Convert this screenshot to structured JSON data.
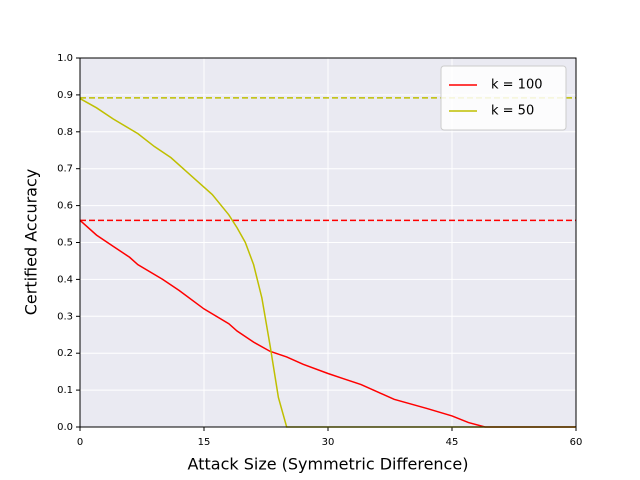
{
  "chart_data": {
    "type": "line",
    "xlabel": "Attack Size (Symmetric Difference)",
    "ylabel": "Certified Accuracy",
    "xlim": [
      0,
      60
    ],
    "xticks": [
      0,
      15,
      30,
      45,
      60
    ],
    "ylim": [
      0,
      1
    ],
    "yticks": [
      {
        "value": 0,
        "label": "0.0"
      },
      0.1,
      0.2,
      0.3,
      0.4,
      0.5,
      0.6,
      0.7,
      0.8,
      0.9,
      {
        "value": 1,
        "label": "1.0"
      }
    ],
    "grid": true,
    "legend": "upper right",
    "series": [
      {
        "name": "k = 100",
        "color": "#ff0000",
        "x": [
          0,
          2,
          4,
          6,
          7,
          10,
          12,
          15,
          18,
          19,
          21,
          23,
          25,
          27,
          30,
          32,
          34,
          36,
          38,
          42,
          45,
          47,
          49,
          60
        ],
        "values": [
          0.56,
          0.52,
          0.49,
          0.46,
          0.44,
          0.4,
          0.37,
          0.32,
          0.28,
          0.26,
          0.23,
          0.205,
          0.19,
          0.17,
          0.145,
          0.13,
          0.115,
          0.095,
          0.075,
          0.05,
          0.03,
          0.012,
          0,
          0
        ]
      },
      {
        "name": "k = 50",
        "color": "#bfbf00",
        "x": [
          0,
          2,
          4,
          7,
          9,
          11,
          13,
          14,
          16,
          18,
          19,
          20,
          21,
          22,
          23,
          24,
          25,
          60
        ],
        "values": [
          0.89,
          0.865,
          0.835,
          0.795,
          0.76,
          0.73,
          0.69,
          0.67,
          0.63,
          0.575,
          0.54,
          0.5,
          0.44,
          0.35,
          0.22,
          0.08,
          0,
          0
        ]
      }
    ],
    "reference_lines": [
      {
        "value": 0.56,
        "color": "#ff0000"
      },
      {
        "value": 0.892,
        "color": "#bfbf00"
      }
    ]
  }
}
